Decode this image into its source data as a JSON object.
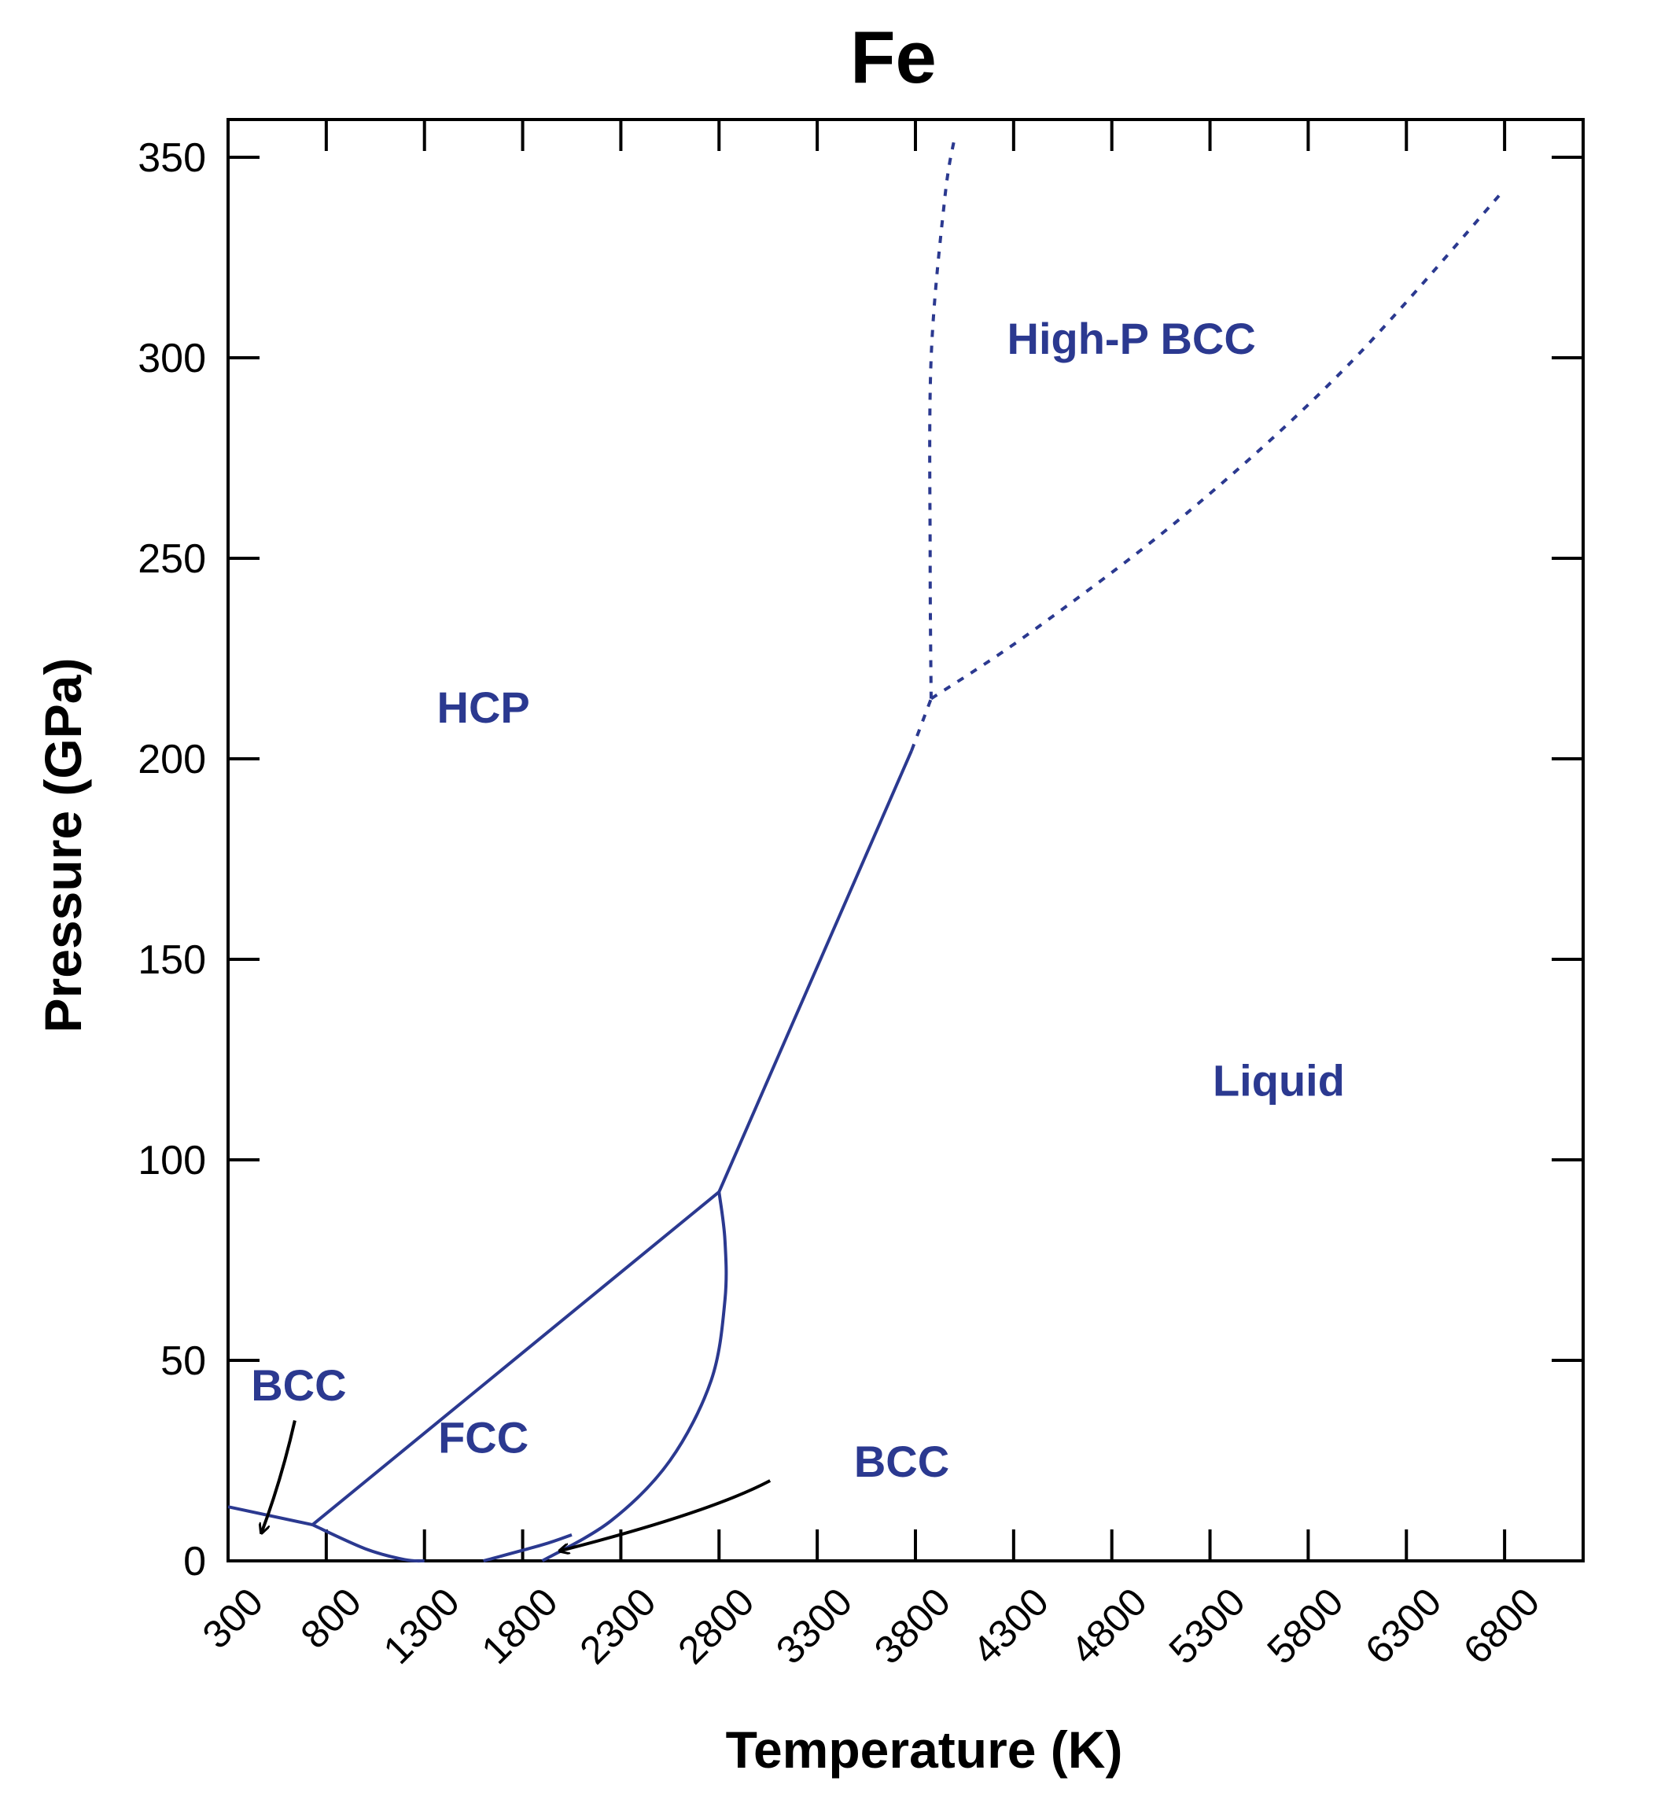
{
  "chart_data": {
    "type": "line",
    "title": "Fe",
    "xlabel": "Temperature (K)",
    "ylabel": "Pressure (GPa)",
    "xlim": [
      300,
      7000
    ],
    "ylim": [
      0,
      360
    ],
    "x_ticks": [
      300,
      800,
      1300,
      1800,
      2300,
      2800,
      3300,
      3800,
      4300,
      4800,
      5300,
      5800,
      6300,
      6800
    ],
    "x_tick_labels": [
      "300",
      "800",
      "1300",
      "1800",
      "2300",
      "2800",
      "3300",
      "3800",
      "4300",
      "4800",
      "5300",
      "5800",
      "6300",
      "6800"
    ],
    "y_ticks": [
      0,
      50,
      100,
      150,
      200,
      250,
      300,
      350
    ],
    "y_tick_labels": [
      "0",
      "50",
      "100",
      "150",
      "200",
      "250",
      "300",
      "350"
    ],
    "grid": false,
    "colors": {
      "curves": "#2b3990",
      "axes": "#000000",
      "arrows": "#000000"
    },
    "series": [
      {
        "style": "solid",
        "points": [
          [
            300,
            13.5
          ],
          [
            730,
            9
          ]
        ]
      },
      {
        "style": "solid",
        "points": [
          [
            730,
            9
          ],
          [
            1000,
            3
          ],
          [
            1200,
            0.3
          ],
          [
            1300,
            0
          ]
        ]
      },
      {
        "style": "solid",
        "points": [
          [
            730,
            9
          ],
          [
            2800,
            92
          ]
        ]
      },
      {
        "style": "solid",
        "points": [
          [
            2800,
            92
          ],
          [
            2830,
            80
          ],
          [
            2830,
            65
          ],
          [
            2760,
            45
          ],
          [
            2550,
            25
          ],
          [
            2250,
            10
          ],
          [
            1900,
            0
          ]
        ]
      },
      {
        "style": "solid",
        "points": [
          [
            1600,
            0
          ],
          [
            1900,
            4
          ],
          [
            2050,
            6.5
          ]
        ]
      },
      {
        "style": "solid",
        "points": [
          [
            2800,
            92
          ],
          [
            3780,
            202
          ]
        ]
      },
      {
        "style": "dashed",
        "points": [
          [
            3780,
            202
          ],
          [
            3880,
            215
          ]
        ]
      },
      {
        "style": "dashed",
        "points": [
          [
            3880,
            215
          ],
          [
            3875,
            250
          ],
          [
            3880,
            300
          ],
          [
            3950,
            340
          ],
          [
            4000,
            355
          ]
        ]
      },
      {
        "style": "dashed",
        "points": [
          [
            3880,
            215
          ],
          [
            4400,
            232
          ],
          [
            5200,
            262
          ],
          [
            6000,
            298
          ],
          [
            6800,
            342
          ]
        ]
      }
    ],
    "annotations": [
      {
        "text": "HCP",
        "x": 1600,
        "y": 209
      },
      {
        "text": "High-P BCC",
        "x": 4900,
        "y": 301
      },
      {
        "text": "Liquid",
        "x": 5650,
        "y": 116
      },
      {
        "text": "FCC",
        "x": 1600,
        "y": 27
      },
      {
        "text": "BCC",
        "x": 660,
        "y": 40
      },
      {
        "text": "BCC",
        "x": 3730,
        "y": 21
      }
    ],
    "arrows": [
      {
        "from": [
          640,
          35
        ],
        "via": [
          570,
          20
        ],
        "to": [
          470,
          7
        ]
      },
      {
        "from": [
          3060,
          20
        ],
        "via": [
          2750,
          12
        ],
        "to": [
          1990,
          2.5
        ]
      }
    ]
  }
}
